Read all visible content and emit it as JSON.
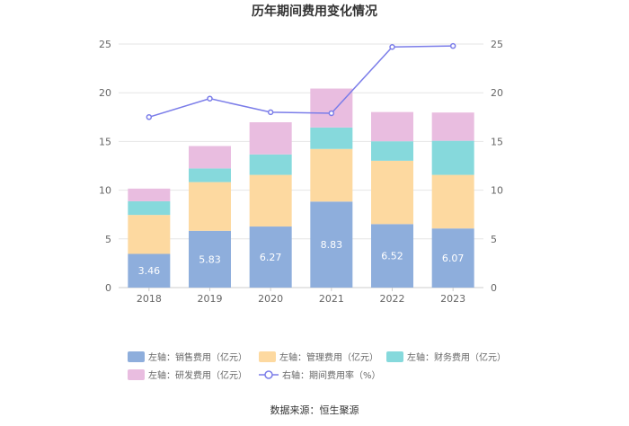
{
  "chart_data": {
    "type": "bar",
    "stacked": true,
    "title": "历年期间费用变化情况",
    "categories": [
      "2018",
      "2019",
      "2020",
      "2021",
      "2022",
      "2023"
    ],
    "series": [
      {
        "name": "左轴：销售费用（亿元）",
        "axis": "left",
        "color": "#8eaedc",
        "values": [
          3.46,
          5.83,
          6.27,
          8.83,
          6.52,
          6.07
        ],
        "show_labels": true
      },
      {
        "name": "左轴：管理费用（亿元）",
        "axis": "left",
        "color": "#fdd9a0",
        "values": [
          4.0,
          5.0,
          5.3,
          5.4,
          6.5,
          5.5
        ],
        "show_labels": false
      },
      {
        "name": "左轴：财务费用（亿元）",
        "axis": "left",
        "color": "#86d9dc",
        "values": [
          1.4,
          1.4,
          2.1,
          2.2,
          2.0,
          3.5
        ],
        "show_labels": false
      },
      {
        "name": "左轴：研发费用（亿元）",
        "axis": "left",
        "color": "#e9bde0",
        "values": [
          1.3,
          2.3,
          3.3,
          4.0,
          3.0,
          2.9
        ],
        "show_labels": false
      }
    ],
    "line": {
      "name": "右轴：期间费用率（%）",
      "axis": "right",
      "color": "#7b7de9",
      "values": [
        17.5,
        19.4,
        18.0,
        17.9,
        24.7,
        24.8
      ]
    },
    "left_ylim": [
      0,
      25
    ],
    "right_ylim": [
      0,
      25
    ],
    "yticks": [
      0,
      5,
      10,
      15,
      20,
      25
    ],
    "grid": true,
    "legend_position": "bottom"
  },
  "source_text": "数据来源：恒生聚源"
}
